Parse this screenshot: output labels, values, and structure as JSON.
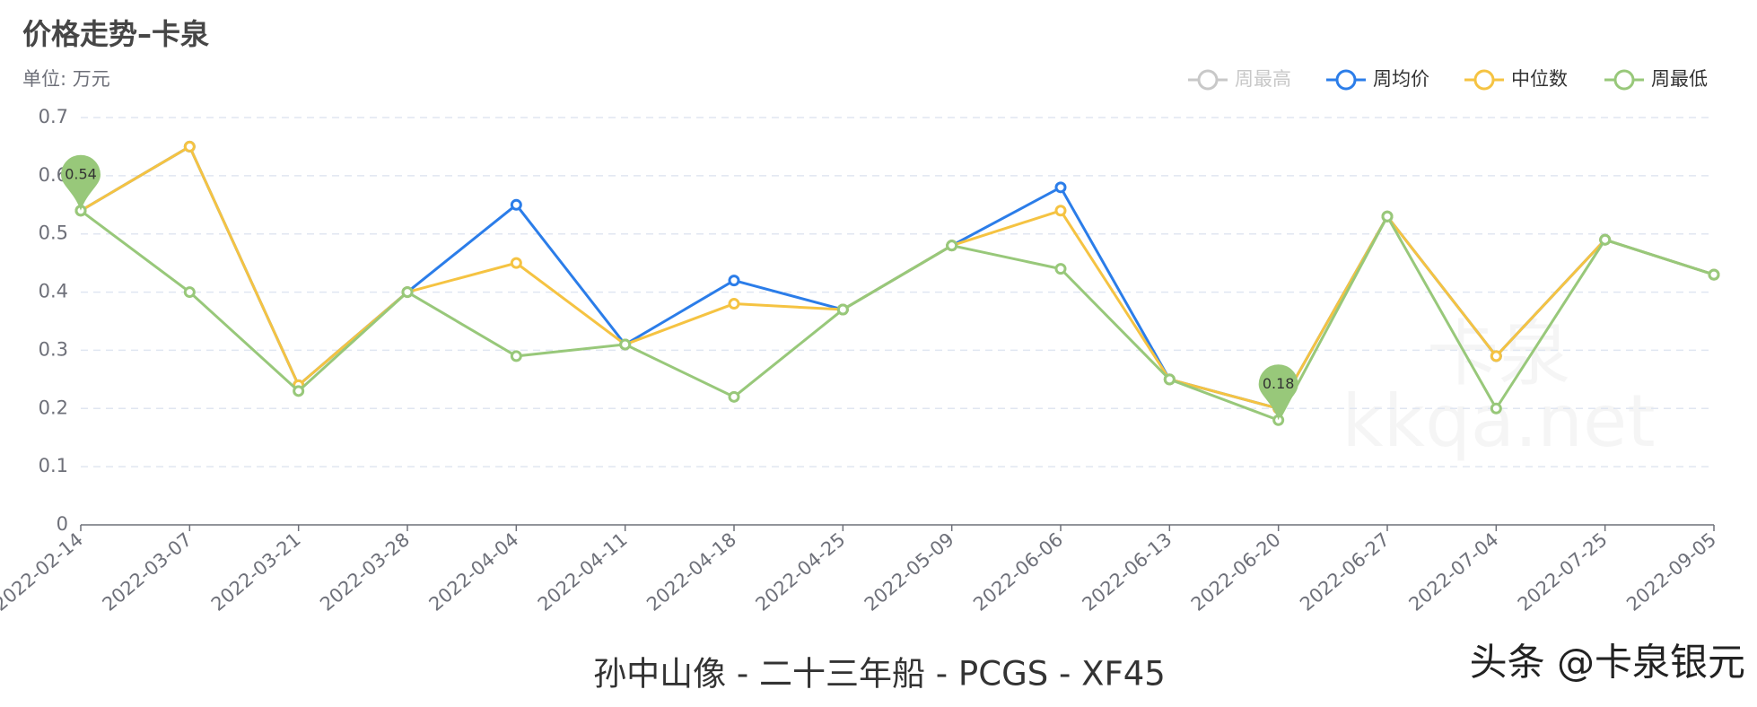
{
  "chart_data": {
    "type": "line",
    "title": "价格走势–卡泉",
    "subtitle": "单位: 万元",
    "caption": "孙中山像 - 二十三年船 - PCGS - XF45",
    "watermark": [
      "卡泉",
      "kkqa.net"
    ],
    "credit": "头条 @卡泉银元",
    "categories": [
      "2022-02-14",
      "2022-03-07",
      "2022-03-21",
      "2022-03-28",
      "2022-04-04",
      "2022-04-11",
      "2022-04-18",
      "2022-04-25",
      "2022-05-09",
      "2022-06-06",
      "2022-06-13",
      "2022-06-20",
      "2022-06-27",
      "2022-07-04",
      "2022-07-25",
      "2022-09-05"
    ],
    "ylim": [
      0,
      0.7
    ],
    "yticks": [
      0,
      0.1,
      0.2,
      0.3,
      0.4,
      0.5,
      0.6,
      0.7
    ],
    "grid": true,
    "legend": "top-right",
    "series": [
      {
        "name": "周最高",
        "color": "#c8c8c8",
        "visible": false,
        "values": [
          null,
          null,
          null,
          null,
          null,
          null,
          null,
          null,
          null,
          null,
          null,
          null,
          null,
          null,
          null,
          null
        ]
      },
      {
        "name": "周均价",
        "color": "#2b7de9",
        "visible": true,
        "values": [
          0.54,
          0.65,
          0.24,
          0.4,
          0.55,
          0.31,
          0.42,
          0.37,
          0.48,
          0.58,
          0.25,
          0.2,
          0.53,
          0.29,
          0.49,
          0.43
        ]
      },
      {
        "name": "中位数",
        "color": "#f5c342",
        "visible": true,
        "values": [
          0.54,
          0.65,
          0.24,
          0.4,
          0.45,
          0.31,
          0.38,
          0.37,
          0.48,
          0.54,
          0.25,
          0.2,
          0.53,
          0.29,
          0.49,
          0.43
        ]
      },
      {
        "name": "周最低",
        "color": "#98c87a",
        "visible": true,
        "values": [
          0.54,
          0.4,
          0.23,
          0.4,
          0.29,
          0.31,
          0.22,
          0.37,
          0.48,
          0.44,
          0.25,
          0.18,
          0.53,
          0.2,
          0.49,
          0.43
        ],
        "mark_points": [
          0.54,
          0.18
        ]
      }
    ]
  }
}
